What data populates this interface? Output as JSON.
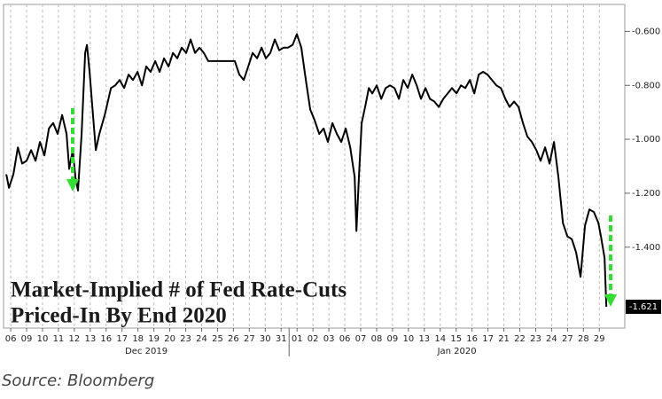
{
  "chart_data": {
    "type": "line",
    "annotation": [
      "Market-Implied # of Fed Rate-Cuts",
      "Priced-In By End 2020"
    ],
    "source": "Source: Bloomberg",
    "x": [
      -0.28,
      -0.11,
      0.17,
      0.45,
      0.72,
      1.0,
      1.28,
      1.56,
      1.84,
      2.12,
      2.4,
      2.67,
      2.95,
      3.23,
      3.51,
      3.68,
      3.9,
      4.07,
      4.23,
      4.46,
      4.68,
      4.79,
      4.96,
      5.13,
      5.35,
      5.57,
      5.91,
      6.3,
      6.57,
      6.85,
      7.13,
      7.41,
      7.69,
      7.97,
      8.25,
      8.52,
      8.8,
      9.08,
      9.36,
      9.64,
      9.92,
      10.2,
      10.47,
      10.75,
      11.03,
      11.31,
      11.59,
      11.87,
      12.14,
      12.42,
      13.26,
      14.09,
      14.37,
      14.65,
      14.93,
      15.21,
      15.49,
      15.77,
      16.04,
      16.32,
      16.6,
      16.88,
      17.16,
      17.44,
      17.72,
      17.99,
      18.27,
      18.55,
      18.83,
      19.11,
      19.39,
      19.67,
      19.94,
      20.22,
      20.5,
      20.78,
      21.06,
      21.34,
      21.62,
      21.73,
      21.89,
      22.06,
      22.28,
      22.51,
      22.73,
      23.01,
      23.29,
      23.57,
      23.84,
      24.12,
      24.4,
      24.68,
      24.96,
      25.24,
      25.52,
      25.79,
      26.07,
      26.35,
      26.63,
      26.91,
      27.19,
      27.47,
      27.74,
      28.02,
      28.3,
      28.58,
      28.86,
      29.14,
      29.42,
      29.69,
      29.97,
      30.25,
      30.53,
      30.81,
      31.09,
      31.36,
      31.64,
      31.92,
      32.2,
      32.48,
      32.76,
      33.04,
      33.31,
      33.59,
      33.87,
      34.15,
      34.43,
      34.71,
      34.99,
      35.27,
      35.54,
      35.82,
      36.1,
      36.38,
      36.66,
      36.94,
      37.1,
      37.33,
      37.44
    ],
    "series": [
      {
        "name": "Market-Implied # of Fed Rate-Cuts",
        "color": "#000000",
        "values": [
          -1.13,
          -1.18,
          -1.13,
          -1.03,
          -1.09,
          -1.08,
          -1.04,
          -1.08,
          -1.01,
          -1.06,
          -0.96,
          -0.94,
          -0.98,
          -0.91,
          -0.98,
          -1.11,
          -1.04,
          -1.14,
          -1.19,
          -0.98,
          -0.68,
          -0.65,
          -0.75,
          -0.88,
          -1.04,
          -0.98,
          -0.91,
          -0.81,
          -0.8,
          -0.78,
          -0.81,
          -0.76,
          -0.78,
          -0.75,
          -0.8,
          -0.73,
          -0.75,
          -0.71,
          -0.75,
          -0.7,
          -0.73,
          -0.68,
          -0.7,
          -0.66,
          -0.68,
          -0.63,
          -0.68,
          -0.66,
          -0.68,
          -0.71,
          -0.71,
          -0.71,
          -0.76,
          -0.78,
          -0.73,
          -0.68,
          -0.7,
          -0.66,
          -0.7,
          -0.68,
          -0.63,
          -0.67,
          -0.66,
          -0.66,
          -0.65,
          -0.61,
          -0.66,
          -0.78,
          -0.89,
          -0.93,
          -0.98,
          -0.96,
          -1.01,
          -0.94,
          -0.98,
          -1.01,
          -0.96,
          -1.03,
          -1.14,
          -1.34,
          -1.14,
          -0.94,
          -0.88,
          -0.81,
          -0.83,
          -0.8,
          -0.85,
          -0.81,
          -0.8,
          -0.81,
          -0.85,
          -0.78,
          -0.81,
          -0.76,
          -0.8,
          -0.85,
          -0.81,
          -0.85,
          -0.86,
          -0.88,
          -0.85,
          -0.83,
          -0.81,
          -0.83,
          -0.8,
          -0.81,
          -0.78,
          -0.83,
          -0.76,
          -0.75,
          -0.76,
          -0.78,
          -0.8,
          -0.81,
          -0.85,
          -0.88,
          -0.86,
          -0.88,
          -0.94,
          -0.99,
          -1.01,
          -1.04,
          -1.08,
          -1.03,
          -1.09,
          -1.01,
          -1.14,
          -1.31,
          -1.36,
          -1.37,
          -1.42,
          -1.51,
          -1.32,
          -1.26,
          -1.27,
          -1.31,
          -1.36,
          -1.44,
          -1.621
        ]
      }
    ],
    "xlim": [
      -0.45,
      38.6
    ],
    "ylim": [
      -1.7,
      -0.5
    ],
    "yticks": [
      {
        "value": -0.6,
        "label": "-0.600"
      },
      {
        "value": -0.8,
        "label": "-0.800"
      },
      {
        "value": -1.0,
        "label": "-1.000"
      },
      {
        "value": -1.2,
        "label": "-1.200"
      },
      {
        "value": -1.4,
        "label": "-1.400"
      }
    ],
    "xticks": [
      {
        "value": 0,
        "label": "06"
      },
      {
        "value": 1,
        "label": "09"
      },
      {
        "value": 2,
        "label": "10"
      },
      {
        "value": 3,
        "label": "11"
      },
      {
        "value": 4,
        "label": "12"
      },
      {
        "value": 5,
        "label": "13"
      },
      {
        "value": 6,
        "label": "16"
      },
      {
        "value": 7,
        "label": "17"
      },
      {
        "value": 8,
        "label": "18"
      },
      {
        "value": 9,
        "label": "19"
      },
      {
        "value": 10,
        "label": "20"
      },
      {
        "value": 11,
        "label": "23"
      },
      {
        "value": 12,
        "label": "24"
      },
      {
        "value": 13,
        "label": "25"
      },
      {
        "value": 14,
        "label": "26"
      },
      {
        "value": 15,
        "label": "27"
      },
      {
        "value": 16,
        "label": "30"
      },
      {
        "value": 17,
        "label": "31"
      },
      {
        "value": 18,
        "label": "01"
      },
      {
        "value": 19,
        "label": "02"
      },
      {
        "value": 20,
        "label": "03"
      },
      {
        "value": 21,
        "label": "06"
      },
      {
        "value": 22,
        "label": "07"
      },
      {
        "value": 23,
        "label": "08"
      },
      {
        "value": 24,
        "label": "09"
      },
      {
        "value": 25,
        "label": "10"
      },
      {
        "value": 26,
        "label": "13"
      },
      {
        "value": 27,
        "label": "14"
      },
      {
        "value": 28,
        "label": "15"
      },
      {
        "value": 29,
        "label": "16"
      },
      {
        "value": 30,
        "label": "17"
      },
      {
        "value": 31,
        "label": "21"
      },
      {
        "value": 32,
        "label": "22"
      },
      {
        "value": 33,
        "label": "23"
      },
      {
        "value": 34,
        "label": "24"
      },
      {
        "value": 35,
        "label": "27"
      },
      {
        "value": 36,
        "label": "28"
      },
      {
        "value": 37,
        "label": "29"
      }
    ],
    "x_groups": [
      {
        "label": "Dec 2019",
        "start": -0.45,
        "end": 17.5
      },
      {
        "label": "Jan 2020",
        "start": 17.5,
        "end": 38.6
      }
    ],
    "grid": "x"
  }
}
